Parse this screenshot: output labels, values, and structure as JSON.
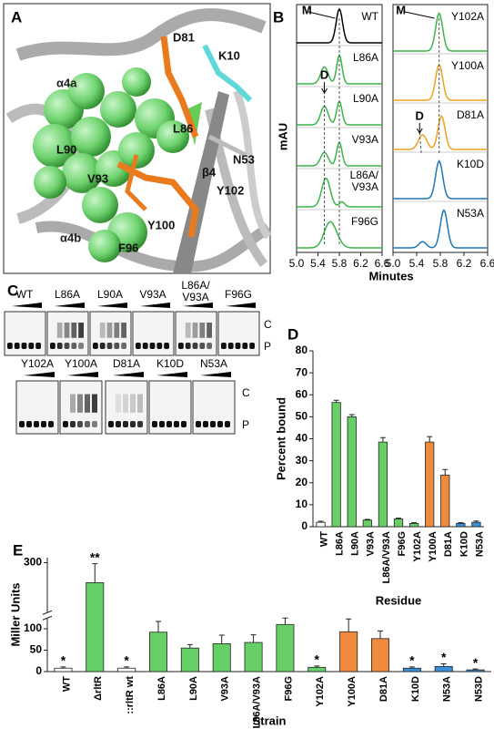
{
  "panels": {
    "A": {
      "label": "A",
      "annotations": [
        "D81",
        "K10",
        "α4a",
        "L90",
        "L86",
        "N53",
        "β4",
        "Y102",
        "V93",
        "Y100",
        "α4b",
        "F96"
      ]
    },
    "B": {
      "label": "B",
      "ylabel": "mAU",
      "xlabel": "Minutes",
      "xticks": [
        "5.0",
        "5.4",
        "5.8",
        "6.2",
        "6.6"
      ],
      "monomer": "M",
      "dimer": "D",
      "left": [
        {
          "name": [
            "WT"
          ],
          "color": "#000000"
        },
        {
          "name": [
            "L86A"
          ],
          "color": "#3cb44b"
        },
        {
          "name": [
            "L90A"
          ],
          "color": "#3cb44b"
        },
        {
          "name": [
            "V93A"
          ],
          "color": "#3cb44b"
        },
        {
          "name": [
            "L86A/",
            "V93A"
          ],
          "color": "#3cb44b"
        },
        {
          "name": [
            "F96G"
          ],
          "color": "#3cb44b"
        }
      ],
      "right": [
        {
          "name": [
            "Y102A"
          ],
          "color": "#3cb44b"
        },
        {
          "name": [
            "Y100A"
          ],
          "color": "#f0a020"
        },
        {
          "name": [
            "D81A"
          ],
          "color": "#f0a020"
        },
        {
          "name": [
            "K10D"
          ],
          "color": "#1f77b4"
        },
        {
          "name": [
            "N53A"
          ],
          "color": "#1f77b4"
        }
      ]
    },
    "C": {
      "label": "C",
      "complex": "C",
      "probe": "P",
      "top": [
        [
          "WT"
        ],
        [
          "L86A"
        ],
        [
          "L90A"
        ],
        [
          "V93A"
        ],
        [
          "L86A/",
          "V93A"
        ],
        [
          "F96G"
        ]
      ],
      "bottom": [
        [
          "Y102A"
        ],
        [
          "Y100A"
        ],
        [
          "D81A"
        ],
        [
          "K10D"
        ],
        [
          "N53A"
        ]
      ]
    }
  },
  "chart_data": [
    {
      "type": "bar",
      "label": "D",
      "ylabel": "Percent bound",
      "xlabel": "Residue",
      "categories": [
        "WT",
        "L86A",
        "L90A",
        "V93A",
        "L86A/V93A",
        "F96G",
        "Y102A",
        "Y100A",
        "D81A",
        "K10D",
        "N53A"
      ],
      "values": [
        2,
        56.5,
        50,
        3,
        38.5,
        3.5,
        1.5,
        38.5,
        23.5,
        1.5,
        2
      ],
      "errors": [
        0.5,
        1,
        1,
        0.3,
        2,
        0.4,
        0.3,
        2.5,
        2.5,
        0.3,
        0.6
      ],
      "colors": [
        "#ffffff",
        "#66d066",
        "#66d066",
        "#66d066",
        "#66d066",
        "#66d066",
        "#66d066",
        "#f08a3c",
        "#f08a3c",
        "#3a8fd8",
        "#3a8fd8"
      ],
      "ylim": [
        0,
        80
      ],
      "yticks": [
        0,
        10,
        20,
        30,
        40,
        50,
        60,
        70,
        80
      ]
    },
    {
      "type": "bar",
      "label": "E",
      "ylabel": "Miller Units",
      "xlabel": "Strain",
      "categories": [
        "WT",
        "ΔrltR",
        "::rltR wt",
        "L86A",
        "L90A",
        "V93A",
        "L86A/V93A",
        "F96G",
        "Y102A",
        "Y100A",
        "D81A",
        "K10D",
        "N53A",
        "N53D"
      ],
      "values": [
        8,
        260,
        8,
        92,
        55,
        65,
        68,
        110,
        10,
        93,
        77,
        8,
        12,
        4
      ],
      "errors": [
        3,
        38,
        3,
        25,
        8,
        20,
        18,
        15,
        3,
        30,
        18,
        3,
        6,
        2
      ],
      "annotations": [
        "*",
        "**",
        "*",
        null,
        null,
        null,
        null,
        null,
        "*",
        null,
        null,
        "*",
        "*",
        "*"
      ],
      "colors": [
        "#ffffff",
        "#66d066",
        "#ffffff",
        "#66d066",
        "#66d066",
        "#66d066",
        "#66d066",
        "#66d066",
        "#66d066",
        "#f08a3c",
        "#f08a3c",
        "#3a8fd8",
        "#3a8fd8",
        "#3a8fd8"
      ],
      "ylim": [
        0,
        310
      ],
      "ybreak": [
        125,
        200
      ],
      "yticks": [
        0,
        50,
        100,
        300
      ]
    }
  ]
}
